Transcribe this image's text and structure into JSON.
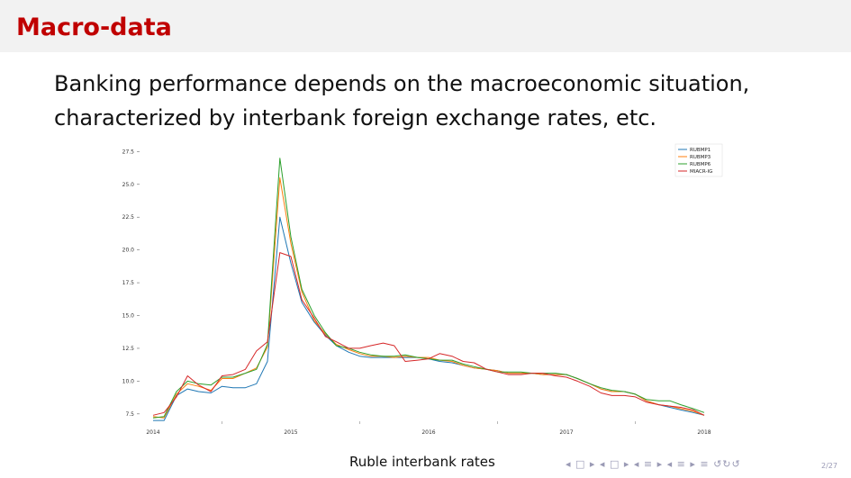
{
  "slide": {
    "title": "Macro-data",
    "body": "Banking performance depends on the macroeconomic situation, characterized by interbank foreign exchange rates, etc.",
    "caption": "Ruble interbank rates",
    "page_number": "2/27",
    "nav_icons": "◂ □ ▸  ◂ □ ▸  ◂ ≡ ▸  ◂ ≡ ▸   ≡   ↺↻↺"
  },
  "colors": {
    "title": "#c00000",
    "title_bar": "#f2f2f2",
    "nav": "#9a9ab5"
  },
  "chart_data": {
    "type": "line",
    "title": "",
    "xlabel": "",
    "ylabel": "",
    "x_ticks": [
      "2014",
      "2015",
      "2016",
      "2017",
      "2018"
    ],
    "x_tick_values": [
      2014.0,
      2015.0,
      2016.0,
      2017.0,
      2018.0
    ],
    "xlim": [
      2014.0,
      2018.0
    ],
    "y_ticks": [
      "7.5",
      "10.0",
      "12.5",
      "15.0",
      "17.5",
      "20.0",
      "22.5",
      "25.0",
      "27.5"
    ],
    "y_tick_values": [
      7.5,
      10.0,
      12.5,
      15.0,
      17.5,
      20.0,
      22.5,
      25.0,
      27.5
    ],
    "ylim": [
      6.8,
      27.8
    ],
    "legend_position": "top-right",
    "grid": false,
    "x": [
      2014.0,
      2014.08,
      2014.17,
      2014.25,
      2014.33,
      2014.42,
      2014.5,
      2014.58,
      2014.67,
      2014.75,
      2014.83,
      2014.92,
      2015.0,
      2015.08,
      2015.17,
      2015.25,
      2015.33,
      2015.42,
      2015.5,
      2015.58,
      2015.67,
      2015.75,
      2015.83,
      2015.92,
      2016.0,
      2016.08,
      2016.17,
      2016.25,
      2016.33,
      2016.42,
      2016.5,
      2016.58,
      2016.67,
      2016.75,
      2016.83,
      2016.92,
      2017.0,
      2017.08,
      2017.17,
      2017.25,
      2017.33,
      2017.42,
      2017.5,
      2017.58,
      2017.67,
      2017.75,
      2017.83,
      2017.92,
      2018.0
    ],
    "series": [
      {
        "name": "RUBMP1",
        "color": "#1f77b4",
        "values": [
          7.0,
          7.0,
          8.9,
          9.4,
          9.2,
          9.1,
          9.6,
          9.5,
          9.5,
          9.8,
          11.5,
          22.5,
          19.0,
          16.0,
          14.5,
          13.5,
          12.7,
          12.2,
          11.9,
          11.8,
          11.8,
          11.8,
          11.8,
          11.8,
          11.7,
          11.5,
          11.4,
          11.2,
          11.0,
          10.9,
          10.8,
          10.6,
          10.6,
          10.6,
          10.5,
          10.5,
          10.5,
          10.2,
          9.8,
          9.4,
          9.2,
          9.2,
          9.0,
          8.5,
          8.2,
          8.0,
          7.8,
          7.6,
          7.4
        ]
      },
      {
        "name": "RUBMP3",
        "color": "#ff7f0e",
        "values": [
          7.3,
          7.2,
          9.0,
          9.8,
          9.6,
          9.3,
          10.2,
          10.2,
          10.6,
          11.0,
          12.6,
          25.5,
          20.5,
          16.8,
          14.6,
          13.6,
          12.8,
          12.4,
          12.1,
          11.9,
          11.9,
          11.8,
          11.9,
          11.8,
          11.8,
          11.6,
          11.5,
          11.2,
          11.0,
          10.9,
          10.8,
          10.6,
          10.6,
          10.6,
          10.5,
          10.5,
          10.5,
          10.2,
          9.8,
          9.4,
          9.2,
          9.2,
          9.0,
          8.5,
          8.2,
          8.1,
          7.9,
          7.7,
          7.4
        ]
      },
      {
        "name": "RUBMP6",
        "color": "#2ca02c",
        "values": [
          7.2,
          7.3,
          9.2,
          10.0,
          9.8,
          9.7,
          10.3,
          10.3,
          10.6,
          10.9,
          12.8,
          27.0,
          21.0,
          17.0,
          15.0,
          13.7,
          12.7,
          12.5,
          12.2,
          12.0,
          11.9,
          11.9,
          12.0,
          11.8,
          11.7,
          11.6,
          11.6,
          11.3,
          11.1,
          10.9,
          10.7,
          10.7,
          10.7,
          10.6,
          10.6,
          10.6,
          10.5,
          10.2,
          9.8,
          9.5,
          9.3,
          9.2,
          9.0,
          8.6,
          8.5,
          8.5,
          8.2,
          7.9,
          7.6
        ]
      },
      {
        "name": "MIACR-IG",
        "color": "#d62728",
        "values": [
          7.4,
          7.6,
          8.8,
          10.4,
          9.7,
          9.2,
          10.4,
          10.5,
          10.9,
          12.3,
          13.0,
          19.8,
          19.5,
          16.2,
          14.8,
          13.4,
          13.0,
          12.5,
          12.5,
          12.7,
          12.9,
          12.7,
          11.5,
          11.6,
          11.7,
          12.1,
          11.9,
          11.5,
          11.4,
          10.9,
          10.7,
          10.5,
          10.5,
          10.6,
          10.6,
          10.4,
          10.3,
          10.0,
          9.6,
          9.1,
          8.9,
          8.9,
          8.8,
          8.4,
          8.2,
          8.1,
          8.0,
          7.8,
          7.4
        ]
      }
    ]
  }
}
